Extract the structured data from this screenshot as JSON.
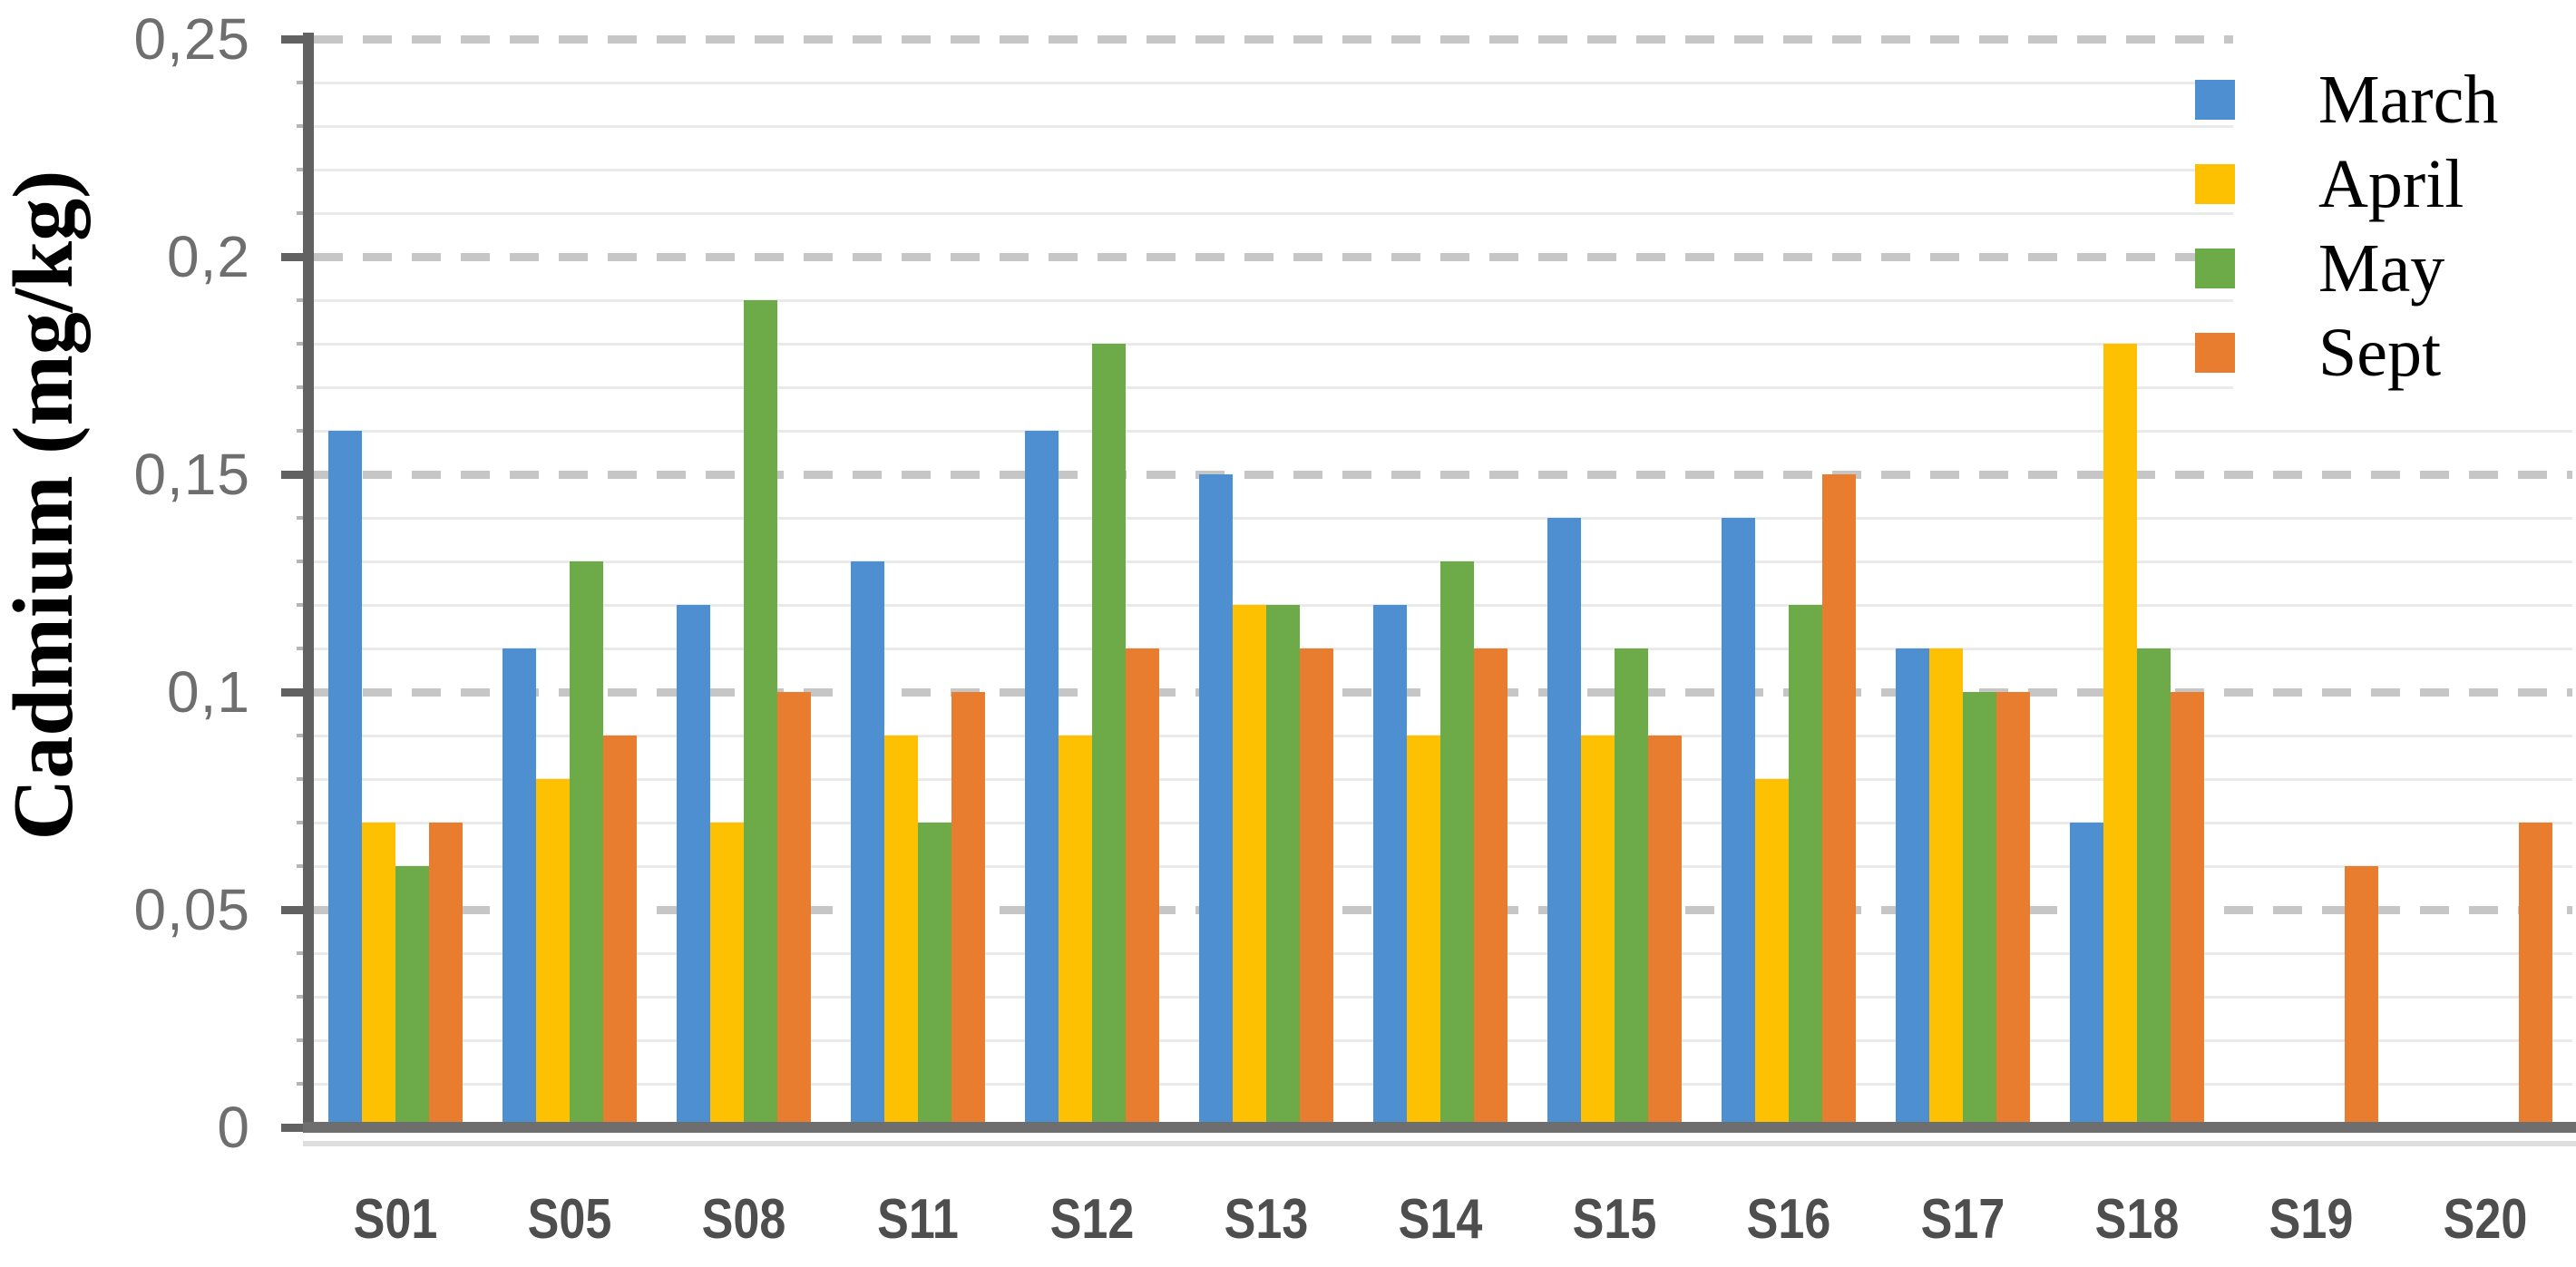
{
  "chart_data": {
    "type": "bar",
    "title": "",
    "xlabel": "",
    "ylabel": "Cadmium (mg/kg)",
    "ylim": [
      0,
      0.25
    ],
    "y_major_step": 0.05,
    "y_minor_step": 0.01,
    "grid": "horizontal: dashed major lines + faint solid minor lines",
    "legend_position": "top-right",
    "y_tick_labels": [
      "0",
      "0,05",
      "0,1",
      "0,15",
      "0,2",
      "0,25"
    ],
    "categories": [
      "S01",
      "S05",
      "S08",
      "S11",
      "S12",
      "S13",
      "S14",
      "S15",
      "S16",
      "S17",
      "S18",
      "S19",
      "S20"
    ],
    "series": [
      {
        "name": "March",
        "color": "#4D8FD1",
        "values": [
          0.16,
          0.11,
          0.12,
          0.13,
          0.16,
          0.15,
          0.12,
          0.14,
          0.14,
          0.11,
          0.07,
          null,
          null
        ]
      },
      {
        "name": "April",
        "color": "#FEC102",
        "values": [
          0.07,
          0.08,
          0.07,
          0.09,
          0.09,
          0.12,
          0.09,
          0.09,
          0.08,
          0.11,
          0.18,
          null,
          null
        ]
      },
      {
        "name": "May",
        "color": "#6CAB47",
        "values": [
          0.06,
          0.13,
          0.19,
          0.07,
          0.18,
          0.12,
          0.13,
          0.11,
          0.12,
          0.1,
          0.11,
          null,
          null
        ]
      },
      {
        "name": "Sept",
        "color": "#E87D30",
        "values": [
          0.07,
          0.09,
          0.1,
          0.1,
          0.11,
          0.11,
          0.11,
          0.09,
          0.15,
          0.1,
          0.1,
          0.06,
          0.07
        ]
      }
    ]
  },
  "axis_colors": {
    "axis_line": "#616161",
    "baseline": "#6E6E6E",
    "major_grid": "#C6C6C6",
    "minor_grid": "#EAEAEA",
    "y_tick_text": "#6E6E6E",
    "x_tick_text": "#4E4E4E"
  }
}
